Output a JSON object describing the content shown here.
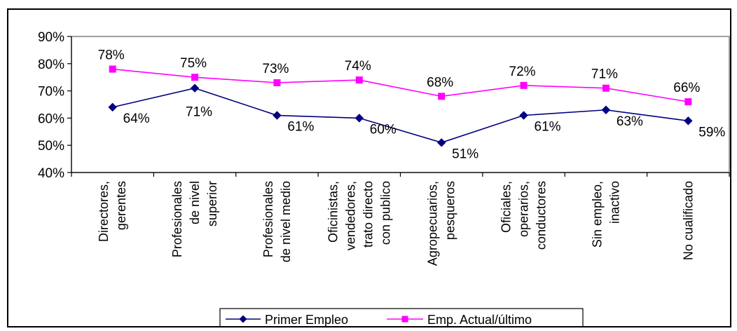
{
  "chart_data": {
    "type": "line",
    "categories": [
      [
        "Directores,",
        "gerentes"
      ],
      [
        "Profesionales",
        "de nivel",
        "superior"
      ],
      [
        "Profesionales",
        "de nivel medio"
      ],
      [
        "Oficinistas,",
        "vendedores,",
        "trato directo",
        "con publico"
      ],
      [
        "Agropecuarios,",
        "pesqueros"
      ],
      [
        "Oficiales,",
        "operarios,",
        "conductores"
      ],
      [
        "Sin empleo,",
        "inactivo"
      ],
      [
        "No cualificado"
      ]
    ],
    "ylim": [
      40,
      90
    ],
    "yticks": [
      40,
      50,
      60,
      70,
      80,
      90
    ],
    "ytick_labels": [
      "40%",
      "50%",
      "60%",
      "70%",
      "80%",
      "90%"
    ],
    "grid": false,
    "legend_position": "bottom",
    "series": [
      {
        "name": "Primer Empleo",
        "color": "#000080",
        "marker": "diamond",
        "values": [
          64,
          71,
          61,
          60,
          51,
          61,
          63,
          59
        ],
        "labels": [
          "64%",
          "71%",
          "61%",
          "60%",
          "51%",
          "61%",
          "63%",
          "59%"
        ]
      },
      {
        "name": "Emp. Actual/último",
        "color": "#FF00FF",
        "marker": "square",
        "values": [
          78,
          75,
          73,
          74,
          68,
          72,
          71,
          66
        ],
        "labels": [
          "78%",
          "75%",
          "73%",
          "74%",
          "68%",
          "72%",
          "71%",
          "66%"
        ]
      }
    ]
  }
}
